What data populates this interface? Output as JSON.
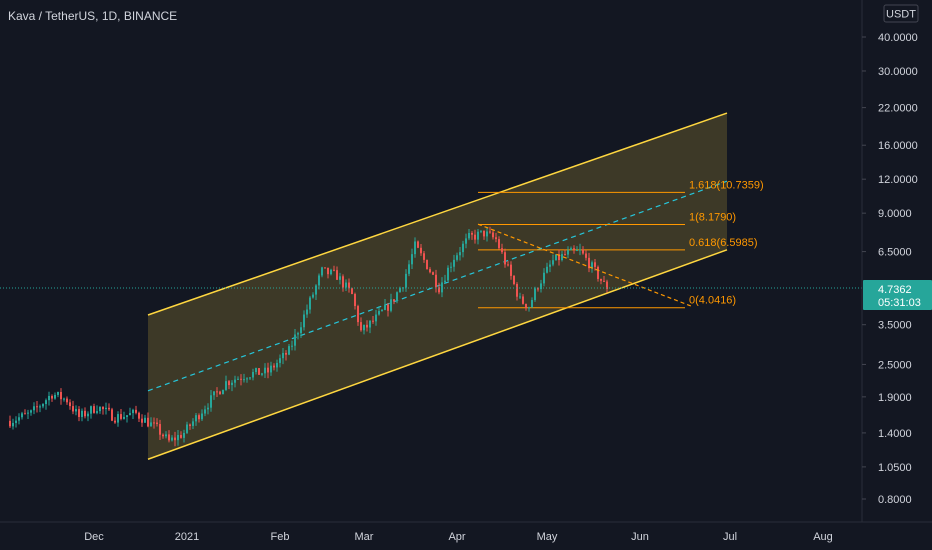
{
  "header": {
    "symbol": "Kava / TetherUS, 1D, BINANCE"
  },
  "currency_button": "USDT",
  "price_badge": {
    "price": "4.7362",
    "countdown": "05:31:03"
  },
  "colors": {
    "background": "#131722",
    "up": "#26a69a",
    "down": "#ef5350",
    "channel": "#ffd740",
    "fib": "#ff9800",
    "midline": "#26c6da"
  },
  "chart_data": {
    "type": "candlestick",
    "title": "Kava / TetherUS, 1D, BINANCE",
    "y_scale": "log",
    "ylim": [
      0.7,
      52
    ],
    "y_ticks": [
      {
        "value": 40,
        "label": "40.0000"
      },
      {
        "value": 30,
        "label": "30.0000"
      },
      {
        "value": 22,
        "label": "22.0000"
      },
      {
        "value": 16,
        "label": "16.0000"
      },
      {
        "value": 12,
        "label": "12.0000"
      },
      {
        "value": 9,
        "label": "9.0000"
      },
      {
        "value": 6.5,
        "label": "6.5000"
      },
      {
        "value": 3.5,
        "label": "3.5000"
      },
      {
        "value": 2.5,
        "label": "2.5000"
      },
      {
        "value": 1.9,
        "label": "1.9000"
      },
      {
        "value": 1.4,
        "label": "1.4000"
      },
      {
        "value": 1.05,
        "label": "1.0500"
      },
      {
        "value": 0.8,
        "label": "0.8000"
      }
    ],
    "x_labels": [
      "Dec",
      "2021",
      "Feb",
      "Mar",
      "Apr",
      "May",
      "Jun",
      "Jul",
      "Aug"
    ],
    "last_price": 4.7362,
    "price_path": [
      {
        "date": "2020-11-03",
        "price": 1.55
      },
      {
        "date": "2020-11-10",
        "price": 1.65
      },
      {
        "date": "2020-11-17",
        "price": 1.95
      },
      {
        "date": "2020-11-22",
        "price": 1.85
      },
      {
        "date": "2020-11-26",
        "price": 1.6
      },
      {
        "date": "2020-12-02",
        "price": 1.75
      },
      {
        "date": "2020-12-08",
        "price": 1.6
      },
      {
        "date": "2020-12-15",
        "price": 1.65
      },
      {
        "date": "2020-12-22",
        "price": 1.45
      },
      {
        "date": "2020-12-26",
        "price": 1.3
      },
      {
        "date": "2020-12-31",
        "price": 1.4
      },
      {
        "date": "2021-01-07",
        "price": 1.75
      },
      {
        "date": "2021-01-14",
        "price": 2.15
      },
      {
        "date": "2021-01-21",
        "price": 2.3
      },
      {
        "date": "2021-01-28",
        "price": 2.35
      },
      {
        "date": "2021-02-04",
        "price": 2.8
      },
      {
        "date": "2021-02-10",
        "price": 4.0
      },
      {
        "date": "2021-02-15",
        "price": 5.5
      },
      {
        "date": "2021-02-20",
        "price": 5.3
      },
      {
        "date": "2021-02-25",
        "price": 4.5
      },
      {
        "date": "2021-02-28",
        "price": 3.3
      },
      {
        "date": "2021-03-04",
        "price": 3.6
      },
      {
        "date": "2021-03-10",
        "price": 4.2
      },
      {
        "date": "2021-03-14",
        "price": 5.0
      },
      {
        "date": "2021-03-18",
        "price": 6.8
      },
      {
        "date": "2021-03-22",
        "price": 5.8
      },
      {
        "date": "2021-03-26",
        "price": 4.8
      },
      {
        "date": "2021-03-31",
        "price": 6.2
      },
      {
        "date": "2021-04-05",
        "price": 7.3
      },
      {
        "date": "2021-04-10",
        "price": 7.6
      },
      {
        "date": "2021-04-14",
        "price": 7.2
      },
      {
        "date": "2021-04-18",
        "price": 5.6
      },
      {
        "date": "2021-04-22",
        "price": 4.3
      },
      {
        "date": "2021-04-25",
        "price": 4.1
      },
      {
        "date": "2021-04-28",
        "price": 4.9
      },
      {
        "date": "2021-05-03",
        "price": 6.0
      },
      {
        "date": "2021-05-08",
        "price": 6.4
      },
      {
        "date": "2021-05-12",
        "price": 6.5
      },
      {
        "date": "2021-05-15",
        "price": 5.9
      },
      {
        "date": "2021-05-18",
        "price": 5.3
      },
      {
        "date": "2021-05-21",
        "price": 4.74
      }
    ],
    "ascending_channel": {
      "upper": [
        {
          "date": "2020-12-19",
          "price": 3.8
        },
        {
          "date": "2021-06-30",
          "price": 21.0
        }
      ],
      "lower": [
        {
          "date": "2020-12-19",
          "price": 1.12
        },
        {
          "date": "2021-06-30",
          "price": 6.6
        }
      ],
      "midline": [
        {
          "date": "2020-12-19",
          "price": 2.0
        },
        {
          "date": "2021-06-30",
          "price": 11.8
        }
      ]
    },
    "descending_line": [
      {
        "date": "2021-04-08",
        "price": 8.2
      },
      {
        "date": "2021-06-18",
        "price": 4.1
      }
    ],
    "fib_levels": [
      {
        "label": "1.618(10.7359)",
        "value": 10.7359
      },
      {
        "label": "1(8.1790)",
        "value": 8.179
      },
      {
        "label": "0.618(6.5985)",
        "value": 6.5985
      },
      {
        "label": "0(4.0416)",
        "value": 4.0416
      }
    ],
    "fib_span": {
      "from": "2021-04-08",
      "to": "2021-06-16"
    },
    "grid": false
  }
}
